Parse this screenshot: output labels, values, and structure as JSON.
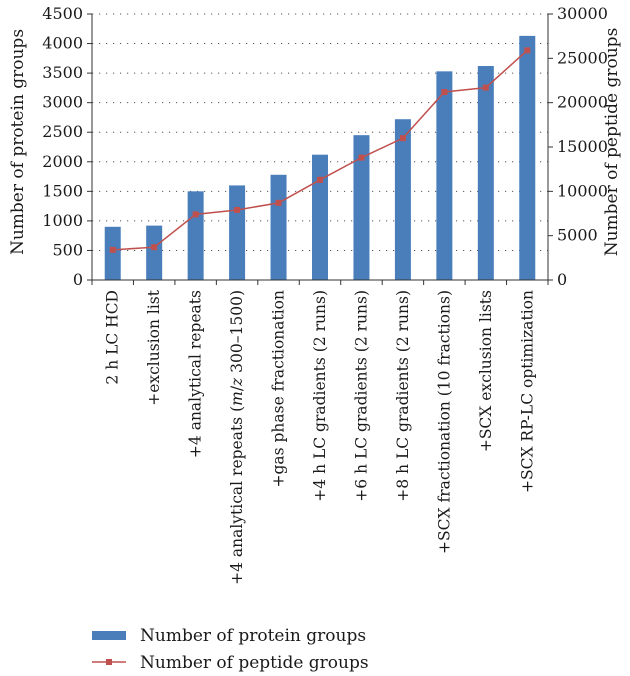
{
  "chart_data": {
    "type": "bar",
    "categories": [
      "2 h LC HCD",
      "+exclusion list",
      "+4 analytical repeats",
      "+4 analytical repeats (m/z 300–1500)",
      "+gas phase fractionation",
      "+4 h LC gradients (2 runs)",
      "+6 h LC gradients (2 runs)",
      "+8 h LC gradients (2 runs)",
      "+SCX fractionation (10 fractions)",
      "+SCX exclusion lists",
      "+SCX RP-LC optimization"
    ],
    "series": [
      {
        "name": "Number of protein groups",
        "type": "bar",
        "axis": "left",
        "color": "#4a7ebb",
        "values": [
          900,
          920,
          1500,
          1600,
          1780,
          2120,
          2450,
          2720,
          3530,
          3620,
          4130
        ]
      },
      {
        "name": "Number of peptide groups",
        "type": "line",
        "axis": "right",
        "color": "#c0504d",
        "values": [
          3400,
          3700,
          7400,
          7900,
          8700,
          11300,
          13800,
          16000,
          21200,
          21700,
          25900
        ]
      }
    ],
    "ylabel": "Number of protein groups",
    "ylabel_right": "Number of peptide groups",
    "ylim": [
      0,
      4500
    ],
    "ylim_right": [
      0,
      30000
    ],
    "yticks": [
      "0",
      "500",
      "1000",
      "1500",
      "2000",
      "2500",
      "3000",
      "3500",
      "4000",
      "4500"
    ],
    "yticks_right": [
      "0",
      "5000",
      "10000",
      "15000",
      "20000",
      "25000",
      "30000"
    ],
    "grid": "dotted horizontal",
    "legend_position": "bottom-left"
  }
}
